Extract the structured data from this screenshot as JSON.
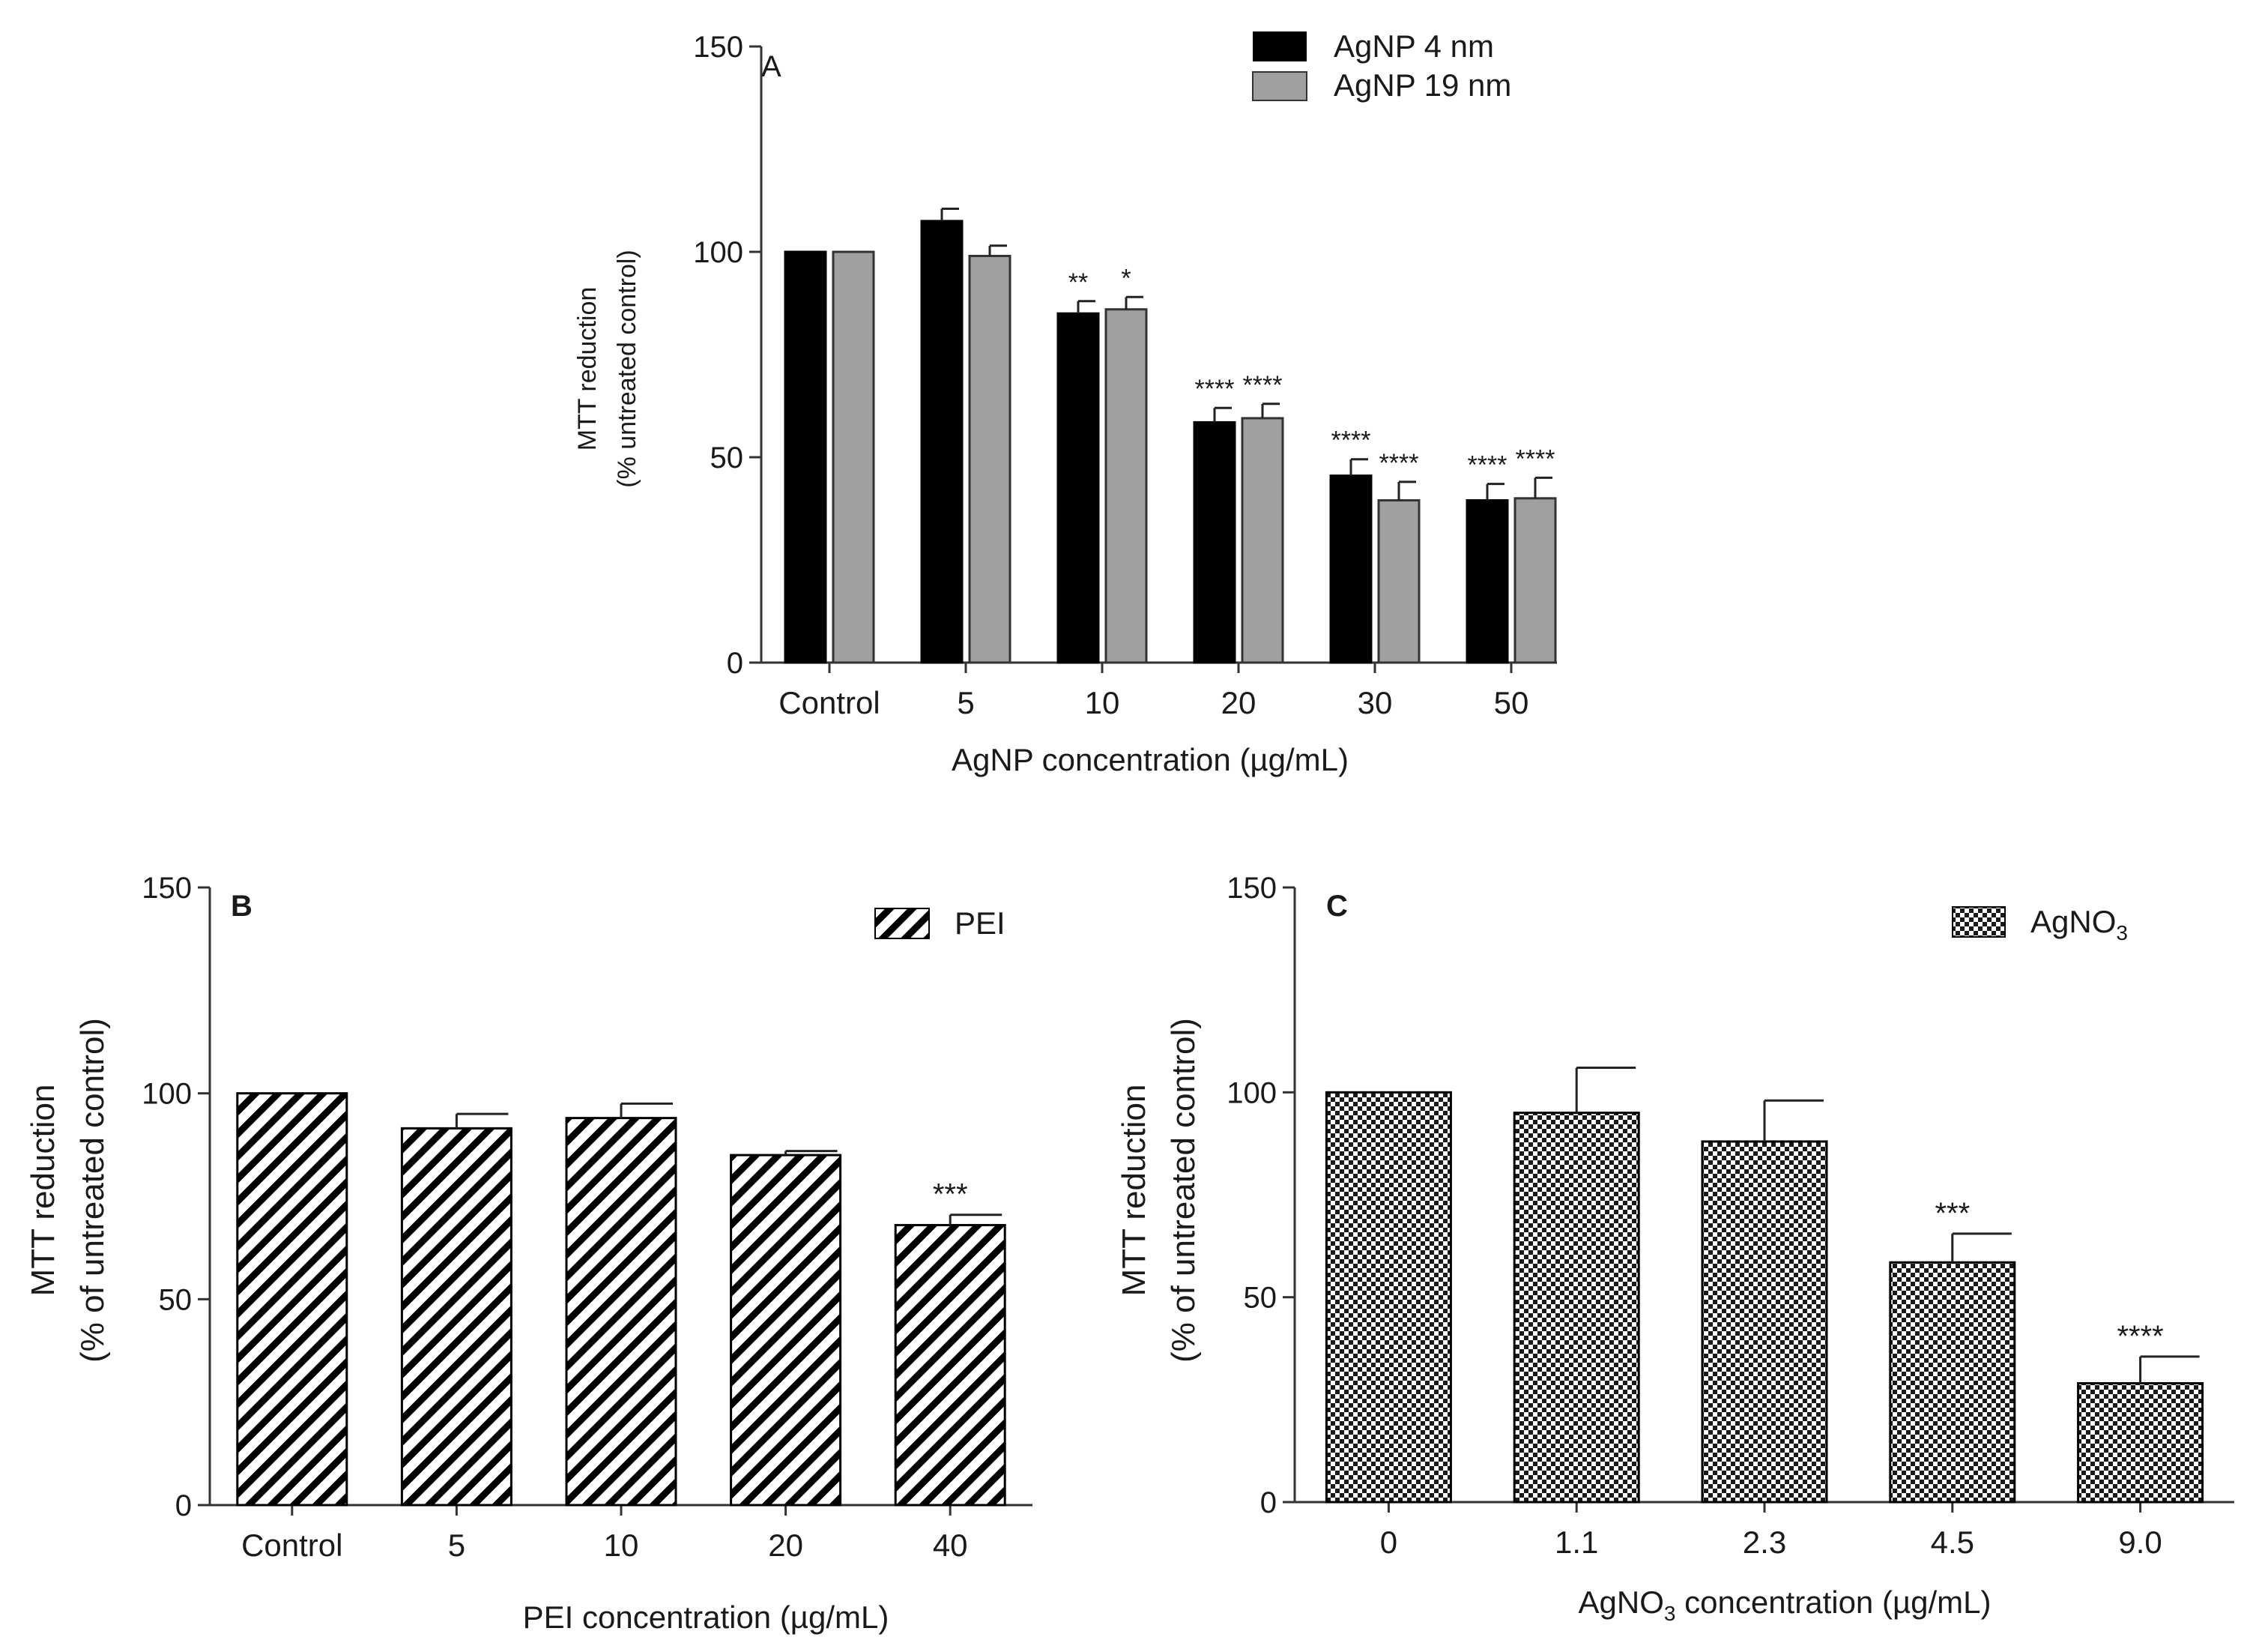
{
  "chart_data": [
    {
      "id": "A",
      "type": "bar",
      "panel_label": "A",
      "title": "",
      "xlabel": "AgNP concentration (µg/mL)",
      "ylabel_line1": "MTT reduction",
      "ylabel_line2": "(% untreated control)",
      "ylim": [
        0,
        150
      ],
      "yticks": [
        0,
        50,
        100,
        150
      ],
      "categories": [
        "Control",
        "5",
        "10",
        "20",
        "30",
        "50"
      ],
      "series": [
        {
          "name": "AgNP 4 nm",
          "color": "#000000",
          "values": [
            100,
            107.5,
            85,
            58.5,
            45.5,
            39.5
          ],
          "errors": [
            0,
            3,
            3,
            3.5,
            4,
            4
          ],
          "significance": [
            "",
            "",
            "**",
            "****",
            "****",
            "****"
          ]
        },
        {
          "name": "AgNP 19 nm",
          "color": "#a0a0a0",
          "values": [
            100,
            99,
            86,
            59.5,
            39.5,
            40
          ],
          "errors": [
            0,
            2.5,
            3,
            3.5,
            4.5,
            5
          ],
          "significance": [
            "",
            "",
            "*",
            "****",
            "****",
            "****"
          ]
        }
      ],
      "legend_position": "top-right"
    },
    {
      "id": "B",
      "type": "bar",
      "panel_label": "B",
      "title": "",
      "xlabel": "PEI concentration (µg/mL)",
      "ylabel_line1": "MTT reduction",
      "ylabel_line2": "(% of untreated control)",
      "ylim": [
        0,
        150
      ],
      "yticks": [
        0,
        50,
        100,
        150
      ],
      "categories": [
        "Control",
        "5",
        "10",
        "20",
        "40"
      ],
      "series": [
        {
          "name": "PEI",
          "pattern": "diagonal-stripes",
          "values": [
            100,
            91.5,
            94,
            85,
            68
          ],
          "errors": [
            0,
            3.5,
            3.5,
            1,
            2.5
          ],
          "significance": [
            "",
            "",
            "",
            "",
            "***"
          ]
        }
      ],
      "legend_position": "top-right"
    },
    {
      "id": "C",
      "type": "bar",
      "panel_label": "C",
      "title": "",
      "xlabel_main": "AgNO",
      "xlabel_sub": "3",
      "xlabel_rest": " concentration (µg/mL)",
      "ylabel_line1": "MTT reduction",
      "ylabel_line2": "(% of untreated control)",
      "ylim": [
        0,
        150
      ],
      "yticks": [
        0,
        50,
        100,
        150
      ],
      "categories": [
        "0",
        "1.1",
        "2.3",
        "4.5",
        "9.0"
      ],
      "series": [
        {
          "name_main": "AgNO",
          "name_sub": "3",
          "pattern": "checkerboard",
          "values": [
            100,
            95,
            88,
            58.5,
            29
          ],
          "errors": [
            0,
            11,
            10,
            7,
            6.5
          ],
          "significance": [
            "",
            "",
            "",
            "***",
            "****"
          ]
        }
      ],
      "legend_position": "top-right"
    }
  ]
}
